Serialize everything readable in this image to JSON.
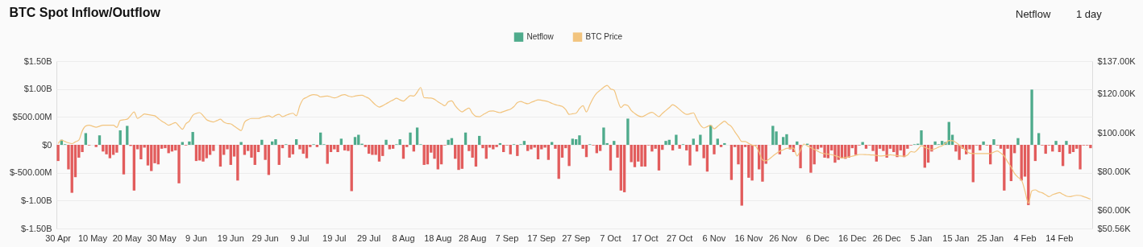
{
  "chart_data": {
    "type": "bar",
    "title": "BTC Spot Inflow/Outflow",
    "annotations": [
      "Netflow",
      "1 day"
    ],
    "categories": [
      "30 Apr",
      null,
      null,
      null,
      null,
      null,
      null,
      null,
      null,
      null,
      "10 May",
      null,
      null,
      null,
      null,
      null,
      null,
      null,
      null,
      null,
      "20 May",
      null,
      null,
      null,
      null,
      null,
      null,
      null,
      null,
      null,
      "30 May",
      null,
      null,
      null,
      null,
      null,
      null,
      null,
      null,
      null,
      "9 Jun",
      null,
      null,
      null,
      null,
      null,
      null,
      null,
      null,
      null,
      "19 Jun",
      null,
      null,
      null,
      null,
      null,
      null,
      null,
      null,
      null,
      "29 Jun",
      null,
      null,
      null,
      null,
      null,
      null,
      null,
      null,
      null,
      "9 Jul",
      null,
      null,
      null,
      null,
      null,
      null,
      null,
      null,
      null,
      "19 Jul",
      null,
      null,
      null,
      null,
      null,
      null,
      null,
      null,
      null,
      "29 Jul",
      null,
      null,
      null,
      null,
      null,
      null,
      null,
      null,
      null,
      "8 Aug",
      null,
      null,
      null,
      null,
      null,
      null,
      null,
      null,
      null,
      "18 Aug",
      null,
      null,
      null,
      null,
      null,
      null,
      null,
      null,
      null,
      "28 Aug",
      null,
      null,
      null,
      null,
      null,
      null,
      null,
      null,
      null,
      "7 Sep",
      null,
      null,
      null,
      null,
      null,
      null,
      null,
      null,
      null,
      "17 Sep",
      null,
      null,
      null,
      null,
      null,
      null,
      null,
      null,
      null,
      "27 Sep",
      null,
      null,
      null,
      null,
      null,
      null,
      null,
      null,
      null,
      "7 Oct",
      null,
      null,
      null,
      null,
      null,
      null,
      null,
      null,
      null,
      "17 Oct",
      null,
      null,
      null,
      null,
      null,
      null,
      null,
      null,
      null,
      "27 Oct",
      null,
      null,
      null,
      null,
      null,
      null,
      null,
      null,
      null,
      "6 Nov",
      null,
      null,
      null,
      null,
      null,
      null,
      null,
      null,
      null,
      "16 Nov",
      null,
      null,
      null,
      null,
      null,
      null,
      null,
      null,
      null,
      "26 Nov",
      null,
      null,
      null,
      null,
      null,
      null,
      null,
      null,
      null,
      "6 Dec",
      null,
      null,
      null,
      null,
      null,
      null,
      null,
      null,
      null,
      "16 Dec",
      null,
      null,
      null,
      null,
      null,
      null,
      null,
      null,
      null,
      "26 Dec",
      null,
      null,
      null,
      null,
      null,
      null,
      null,
      null,
      null,
      "5 Jan",
      null,
      null,
      null,
      null,
      null,
      null,
      null,
      null,
      null,
      "15 Jan",
      null,
      null,
      null,
      null,
      null,
      null,
      null,
      null,
      null,
      "25 Jan",
      null,
      null,
      null,
      null,
      null,
      null,
      null,
      null,
      null,
      "4 Feb",
      null,
      null,
      null,
      null,
      null,
      null,
      null,
      null,
      null,
      "14 Feb",
      null,
      null,
      null,
      null,
      null,
      null,
      null,
      null,
      null
    ],
    "series": [
      {
        "name": "Netflow",
        "color": "#4fab8c",
        "values": [
          -290000000.0,
          90000000.0,
          10000000.0,
          -440000000.0,
          -860000000.0,
          -580000000.0,
          -230000000.0,
          -130000000.0,
          210000000.0,
          -10000000.0,
          0,
          -40000000.0,
          170000000.0,
          -120000000.0,
          -170000000.0,
          -240000000.0,
          -180000000.0,
          -140000000.0,
          260000000.0,
          -530000000.0,
          340000000.0,
          -20000000.0,
          -820000000.0,
          -80000000.0,
          -260000000.0,
          -50000000.0,
          -370000000.0,
          -470000000.0,
          -330000000.0,
          -350000000.0,
          -70000000.0,
          -60000000.0,
          -150000000.0,
          -120000000.0,
          -100000000.0,
          -690000000.0,
          50000000.0,
          -10000000.0,
          60000000.0,
          230000000.0,
          -290000000.0,
          -280000000.0,
          -300000000.0,
          -240000000.0,
          -180000000.0,
          -110000000.0,
          0,
          -390000000.0,
          -180000000.0,
          -80000000.0,
          -360000000.0,
          -210000000.0,
          -640000000.0,
          50000000.0,
          -180000000.0,
          -110000000.0,
          -230000000.0,
          -360000000.0,
          -130000000.0,
          90000000.0,
          -270000000.0,
          -540000000.0,
          60000000.0,
          100000000.0,
          -360000000.0,
          -60000000.0,
          10000000.0,
          -230000000.0,
          -170000000.0,
          100000000.0,
          -80000000.0,
          -160000000.0,
          -240000000.0,
          -40000000.0,
          10000000.0,
          -40000000.0,
          220000000.0,
          10000000.0,
          -340000000.0,
          -130000000.0,
          -80000000.0,
          -130000000.0,
          110000000.0,
          -100000000.0,
          -110000000.0,
          -830000000.0,
          140000000.0,
          180000000.0,
          20000000.0,
          -40000000.0,
          -160000000.0,
          -180000000.0,
          -180000000.0,
          -300000000.0,
          -200000000.0,
          90000000.0,
          -80000000.0,
          -70000000.0,
          10000000.0,
          100000000.0,
          -250000000.0,
          -40000000.0,
          220000000.0,
          -120000000.0,
          310000000.0,
          10000000.0,
          -360000000.0,
          -350000000.0,
          -140000000.0,
          -250000000.0,
          -440000000.0,
          -350000000.0,
          -10000000.0,
          90000000.0,
          120000000.0,
          -250000000.0,
          -450000000.0,
          -430000000.0,
          220000000.0,
          -110000000.0,
          -230000000.0,
          -390000000.0,
          160000000.0,
          -60000000.0,
          -250000000.0,
          -50000000.0,
          -80000000.0,
          -40000000.0,
          30000000.0,
          -130000000.0,
          -10000000.0,
          -170000000.0,
          10000000.0,
          -200000000.0,
          10000000.0,
          70000000.0,
          -110000000.0,
          -80000000.0,
          -50000000.0,
          -260000000.0,
          -80000000.0,
          -50000000.0,
          -270000000.0,
          50000000.0,
          -70000000.0,
          -610000000.0,
          -230000000.0,
          -60000000.0,
          -380000000.0,
          110000000.0,
          100000000.0,
          170000000.0,
          -70000000.0,
          -220000000.0,
          10000000.0,
          -10000000.0,
          -150000000.0,
          -110000000.0,
          310000000.0,
          30000000.0,
          -460000000.0,
          70000000.0,
          -230000000.0,
          -820000000.0,
          -850000000.0,
          470000000.0,
          -310000000.0,
          -400000000.0,
          -300000000.0,
          -390000000.0,
          -390000000.0,
          -10000000.0,
          -120000000.0,
          -70000000.0,
          -460000000.0,
          -90000000.0,
          70000000.0,
          90000000.0,
          -100000000.0,
          180000000.0,
          -70000000.0,
          10000000.0,
          -100000000.0,
          -370000000.0,
          110000000.0,
          -120000000.0,
          180000000.0,
          -240000000.0,
          -480000000.0,
          350000000.0,
          -170000000.0,
          110000000.0,
          -40000000.0,
          30000000.0,
          0,
          -630000000.0,
          -40000000.0,
          -350000000.0,
          -1090000000.0,
          -40000000.0,
          -590000000.0,
          -640000000.0,
          -10000000.0,
          -440000000.0,
          -660000000.0,
          -340000000.0,
          0,
          340000000.0,
          240000000.0,
          -170000000.0,
          140000000.0,
          190000000.0,
          -80000000.0,
          -130000000.0,
          60000000.0,
          -420000000.0,
          null,
          20000000.0,
          -500000000.0,
          -350000000.0,
          -80000000.0,
          -50000000.0,
          -230000000.0,
          -240000000.0,
          -100000000.0,
          -320000000.0,
          -270000000.0,
          -240000000.0,
          -250000000.0,
          -230000000.0,
          -60000000.0,
          -180000000.0,
          -10000000.0,
          50000000.0,
          -70000000.0,
          -10000000.0,
          -110000000.0,
          -300000000.0,
          -70000000.0,
          -110000000.0,
          -230000000.0,
          -70000000.0,
          -130000000.0,
          -220000000.0,
          -100000000.0,
          -220000000.0,
          -70000000.0,
          -10000000.0,
          10000000.0,
          20000000.0,
          260000000.0,
          -410000000.0,
          -320000000.0,
          -120000000.0,
          60000000.0,
          10000000.0,
          70000000.0,
          50000000.0,
          410000000.0,
          180000000.0,
          -120000000.0,
          -270000000.0,
          -70000000.0,
          -170000000.0,
          -80000000.0,
          -670000000.0,
          -10000000.0,
          -100000000.0,
          60000000.0,
          -10000000.0,
          -350000000.0,
          100000000.0,
          -10000000.0,
          -70000000.0,
          -820000000.0,
          -70000000.0,
          -650000000.0,
          -150000000.0,
          120000000.0,
          -640000000.0,
          -570000000.0,
          -1080000000.0,
          990000000.0,
          -290000000.0,
          210000000.0,
          -10000000.0,
          -160000000.0,
          -10000000.0,
          -120000000.0,
          70000000.0,
          -130000000.0,
          -380000000.0,
          70000000.0,
          -160000000.0,
          -130000000.0,
          -70000000.0,
          -440000000.0,
          -10000000.0,
          -10000000.0,
          -60000000.0
        ],
        "colors": [
          "#e25c5c",
          "#4fab8c",
          "#4fab8c",
          "#e25c5c",
          "#e25c5c",
          "#e25c5c",
          "#e25c5c",
          "#e25c5c",
          "#4fab8c",
          "#e25c5c",
          "#4fab8c",
          "#e25c5c",
          "#4fab8c",
          "#e25c5c",
          "#e25c5c",
          "#e25c5c",
          "#e25c5c",
          "#e25c5c",
          "#4fab8c",
          "#e25c5c",
          "#4fab8c",
          "#e25c5c",
          "#e25c5c",
          "#e25c5c",
          "#e25c5c",
          "#e25c5c",
          "#e25c5c",
          "#e25c5c",
          "#e25c5c",
          "#e25c5c",
          "#e25c5c",
          "#e25c5c",
          "#e25c5c",
          "#e25c5c",
          "#e25c5c",
          "#e25c5c",
          "#4fab8c",
          "#e25c5c",
          "#4fab8c",
          "#4fab8c",
          "#e25c5c",
          "#e25c5c",
          "#e25c5c",
          "#e25c5c",
          "#e25c5c",
          "#e25c5c",
          "#4fab8c",
          "#e25c5c",
          "#e25c5c",
          "#e25c5c",
          "#e25c5c",
          "#e25c5c",
          "#e25c5c",
          "#4fab8c",
          "#e25c5c",
          "#e25c5c",
          "#e25c5c",
          "#e25c5c",
          "#e25c5c",
          "#4fab8c",
          "#e25c5c",
          "#e25c5c",
          "#4fab8c",
          "#4fab8c",
          "#e25c5c",
          "#e25c5c",
          "#4fab8c",
          "#e25c5c",
          "#e25c5c",
          "#4fab8c",
          "#e25c5c",
          "#e25c5c",
          "#e25c5c",
          "#e25c5c",
          "#4fab8c",
          "#e25c5c",
          "#4fab8c",
          "#4fab8c",
          "#e25c5c",
          "#e25c5c",
          "#e25c5c",
          "#e25c5c",
          "#4fab8c",
          "#e25c5c",
          "#e25c5c",
          "#e25c5c",
          "#4fab8c",
          "#4fab8c",
          "#4fab8c",
          "#e25c5c",
          "#e25c5c",
          "#e25c5c",
          "#e25c5c",
          "#e25c5c",
          "#e25c5c",
          "#4fab8c",
          "#e25c5c",
          "#e25c5c",
          "#4fab8c",
          "#4fab8c",
          "#e25c5c",
          "#e25c5c",
          "#4fab8c",
          "#e25c5c",
          "#4fab8c",
          "#4fab8c",
          "#e25c5c",
          "#e25c5c",
          "#e25c5c",
          "#e25c5c",
          "#e25c5c",
          "#e25c5c",
          "#e25c5c",
          "#4fab8c",
          "#4fab8c",
          "#e25c5c",
          "#e25c5c",
          "#e25c5c",
          "#4fab8c",
          "#e25c5c",
          "#e25c5c",
          "#e25c5c",
          "#4fab8c",
          "#e25c5c",
          "#e25c5c",
          "#e25c5c",
          "#e25c5c",
          "#e25c5c",
          "#4fab8c",
          "#e25c5c",
          "#e25c5c",
          "#e25c5c",
          "#4fab8c",
          "#e25c5c",
          "#4fab8c",
          "#4fab8c",
          "#e25c5c",
          "#e25c5c",
          "#e25c5c",
          "#e25c5c",
          "#e25c5c",
          "#e25c5c",
          "#e25c5c",
          "#4fab8c",
          "#e25c5c",
          "#e25c5c",
          "#e25c5c",
          "#e25c5c",
          "#e25c5c",
          "#4fab8c",
          "#4fab8c",
          "#4fab8c",
          "#e25c5c",
          "#e25c5c",
          "#4fab8c",
          "#e25c5c",
          "#e25c5c",
          "#e25c5c",
          "#4fab8c",
          "#4fab8c",
          "#e25c5c",
          "#4fab8c",
          "#e25c5c",
          "#e25c5c",
          "#e25c5c",
          "#4fab8c",
          "#e25c5c",
          "#e25c5c",
          "#e25c5c",
          "#e25c5c",
          "#e25c5c",
          "#e25c5c",
          "#e25c5c",
          "#e25c5c",
          "#e25c5c",
          "#e25c5c",
          "#4fab8c",
          "#4fab8c",
          "#e25c5c",
          "#4fab8c",
          "#e25c5c",
          "#4fab8c",
          "#e25c5c",
          "#e25c5c",
          "#4fab8c",
          "#e25c5c",
          "#4fab8c",
          "#e25c5c",
          "#e25c5c",
          "#4fab8c",
          "#e25c5c",
          "#4fab8c",
          "#e25c5c",
          "#4fab8c",
          "#4fab8c",
          "#e25c5c",
          "#e25c5c",
          "#e25c5c",
          "#e25c5c",
          "#e25c5c",
          "#e25c5c",
          "#e25c5c",
          "#e25c5c",
          "#e25c5c",
          "#e25c5c",
          "#e25c5c",
          "#4fab8c",
          "#4fab8c",
          "#4fab8c",
          "#e25c5c",
          "#4fab8c",
          "#4fab8c",
          "#e25c5c",
          "#e25c5c",
          "#4fab8c",
          "#e25c5c",
          "#4fab8c",
          "#4fab8c",
          "#e25c5c",
          "#e25c5c",
          "#e25c5c",
          "#e25c5c",
          "#e25c5c",
          "#e25c5c",
          "#e25c5c",
          "#e25c5c",
          "#e25c5c",
          "#e25c5c",
          "#e25c5c",
          "#e25c5c",
          "#e25c5c",
          "#e25c5c",
          "#e25c5c",
          "#4fab8c",
          "#e25c5c",
          "#e25c5c",
          "#e25c5c",
          "#e25c5c",
          "#e25c5c",
          "#e25c5c",
          "#e25c5c",
          "#e25c5c",
          "#e25c5c",
          "#e25c5c",
          "#e25c5c",
          "#e25c5c",
          "#e25c5c",
          "#e25c5c",
          "#4fab8c",
          "#4fab8c",
          "#4fab8c",
          "#e25c5c",
          "#e25c5c",
          "#e25c5c",
          "#4fab8c",
          "#4fab8c",
          "#4fab8c",
          "#4fab8c",
          "#4fab8c",
          "#4fab8c",
          "#e25c5c",
          "#e25c5c",
          "#e25c5c",
          "#e25c5c",
          "#e25c5c",
          "#e25c5c",
          "#e25c5c",
          "#e25c5c",
          "#4fab8c",
          "#e25c5c",
          "#e25c5c",
          "#4fab8c",
          "#e25c5c",
          "#e25c5c",
          "#e25c5c",
          "#e25c5c",
          "#e25c5c",
          "#e25c5c",
          "#4fab8c",
          "#e25c5c",
          "#e25c5c",
          "#e25c5c",
          "#4fab8c",
          "#e25c5c",
          "#4fab8c",
          "#e25c5c",
          "#e25c5c",
          "#e25c5c",
          "#e25c5c",
          "#4fab8c",
          "#e25c5c",
          "#e25c5c",
          "#4fab8c",
          "#e25c5c",
          "#e25c5c",
          "#e25c5c",
          "#e25c5c",
          "#e25c5c",
          "#e25c5c",
          "#e25c5c"
        ]
      },
      {
        "name": "BTC Price",
        "type": "line",
        "axis": "y2",
        "color": "#f2c47e",
        "values": [
          94.4,
          96.2,
          95.5,
          94.8,
          94.4,
          95.3,
          96.2,
          101,
          103.5,
          103.9,
          103.4,
          102.9,
          103.4,
          103.9,
          103.9,
          103.9,
          103.9,
          102.8,
          106.4,
          106.7,
          107,
          108.9,
          110.8,
          107.4,
          108.5,
          109.7,
          109.4,
          109.1,
          108.8,
          107.4,
          106,
          105,
          103.9,
          104.6,
          105.3,
          103.5,
          101.8,
          104.6,
          106,
          109,
          110,
          110.4,
          108.8,
          106.8,
          106,
          105.6,
          106.3,
          107,
          105.5,
          104.8,
          104.6,
          103.4,
          102.2,
          101.1,
          105.5,
          106.8,
          107.4,
          107.4,
          107.4,
          108,
          108.4,
          108.8,
          108,
          109,
          109.5,
          108.3,
          109,
          109.7,
          110.1,
          108.8,
          114,
          117.4,
          118.3,
          119.3,
          119.7,
          119.5,
          118.5,
          118.8,
          119,
          118.5,
          118,
          118.5,
          119.4,
          119.7,
          119,
          118.6,
          119,
          119.3,
          119.4,
          118.6,
          117.8,
          116,
          114.3,
          113.3,
          114,
          115,
          116,
          116.9,
          117.8,
          117,
          116.4,
          117.8,
          119.2,
          119,
          121,
          123.4,
          118.1,
          118,
          117.9,
          117.3,
          116,
          115,
          114,
          116,
          116.5,
          114,
          112,
          110.8,
          111.9,
          112.7,
          110,
          108.5,
          108.3,
          109.3,
          110.3,
          111.2,
          111.3,
          110.8,
          110.4,
          111,
          111.6,
          112.2,
          113.5,
          115.6,
          116.2,
          115.5,
          115,
          115.7,
          116.4,
          117,
          116.8,
          116.5,
          116,
          115.2,
          114.5,
          114.1,
          113.6,
          112,
          109.5,
          109.8,
          110.1,
          112.5,
          114,
          110.8,
          114.5,
          118,
          120.5,
          122,
          123.5,
          124.5,
          122.7,
          122,
          117,
          113,
          114.5,
          114,
          111.5,
          110,
          108.8,
          108.3,
          109,
          110,
          110.6,
          109.5,
          108.3,
          110,
          111.5,
          113,
          114.5,
          113.5,
          112,
          110.5,
          109.5,
          109.8,
          110.3,
          107,
          104,
          102.5,
          103.2,
          103.9,
          102,
          103.3,
          104.8,
          106,
          104.5,
          103.2,
          100.5,
          98,
          95.5,
          95.5,
          94.5,
          93.6,
          93.1,
          90,
          86,
          85.5,
          86.5,
          88,
          89.3,
          90.5,
          91.2,
          92,
          92.1,
          92.1,
          88,
          91,
          94.2,
          93.2,
          92.3,
          91.4,
          90.5,
          89.6,
          89.2,
          89,
          88.7,
          88.2,
          87.6,
          87,
          87.2,
          87.6,
          87.9,
          88.3,
          88.8,
          88.8,
          88.7,
          88.6,
          88.5,
          88.3,
          88,
          88.1,
          88.3,
          88.6,
          88.4,
          88.2,
          88,
          87.9,
          88.5,
          90.3,
          90,
          91.5,
          93.3,
          92.5,
          91.8,
          91.2,
          91.8,
          92.6,
          93.3,
          94.5,
          96,
          95.9,
          95,
          93.7,
          92.3,
          90.7,
          89.5,
          89.3,
          89.3,
          89.3,
          89.3,
          89.3,
          89.3,
          90,
          90.6,
          89.5,
          88,
          85,
          82.3,
          79,
          77,
          75.6,
          70,
          63.6,
          70,
          70.5,
          69.5,
          69,
          68,
          67,
          68,
          68.6,
          69.1,
          68.2,
          67.3,
          67,
          67.4,
          67.7,
          67.6,
          67,
          66.4,
          65.7
        ]
      }
    ],
    "ylim": [
      -1500000000,
      1500000000
    ],
    "yticks": [
      {
        "value": -1500000000,
        "label": "$-1.50B"
      },
      {
        "value": -1000000000,
        "label": "$-1.00B"
      },
      {
        "value": -500000000,
        "label": "$-500.00M"
      },
      {
        "value": 0,
        "label": "$0"
      },
      {
        "value": 500000000,
        "label": "$500.00M"
      },
      {
        "value": 1000000000,
        "label": "$1.00B"
      },
      {
        "value": 1500000000,
        "label": "$1.50B"
      }
    ],
    "y2lim": [
      50.56,
      137
    ],
    "y2ticks": [
      {
        "value": 50.56,
        "label": "$50.56K"
      },
      {
        "value": 60,
        "label": "$60.00K"
      },
      {
        "value": 80,
        "label": "$80.00K"
      },
      {
        "value": 100,
        "label": "$100.00K"
      },
      {
        "value": 120,
        "label": "$120.00K"
      },
      {
        "value": 137,
        "label": "$137.00K"
      }
    ],
    "grid": "y",
    "legend": "top"
  }
}
